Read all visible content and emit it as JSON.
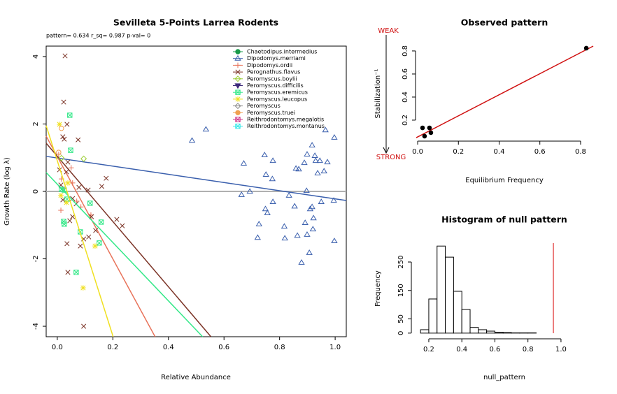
{
  "chart_data": [
    {
      "type": "scatter",
      "title": "Sevilleta 5-Points Larrea Rodents",
      "subtitle": "pattern= 0.634 r_sq= 0.987 p-val= 0",
      "x_label": "Relative Abundance",
      "y_label": "Growth Rate (log λ)",
      "xlim": [
        -0.04,
        1.04
      ],
      "ylim": [
        -4.31,
        4.31
      ],
      "xticks": [
        {
          "value": 0,
          "label": "0.0"
        },
        {
          "value": 0.2,
          "label": "0.2"
        },
        {
          "value": 0.4,
          "label": "0.4"
        },
        {
          "value": 0.6,
          "label": "0.6"
        },
        {
          "value": 0.8,
          "label": "0.8"
        },
        {
          "value": 1,
          "label": "1.0"
        }
      ],
      "yticks": [
        -4,
        -2,
        0,
        2,
        4
      ],
      "hline": 0,
      "hline_color": "#b0b0b0",
      "legend": "top-right",
      "series": [
        {
          "name": "Chaetodipus.intermedius",
          "color": "#1a9a4a",
          "marker": "circle",
          "x": [],
          "values": []
        },
        {
          "name": "Dipodomys.merriami",
          "color": "#3a5fad",
          "marker": "triangle",
          "x": [
            0.485,
            0.535,
            0.671,
            0.663,
            0.693,
            0.746,
            0.751,
            0.776,
            0.774,
            0.776,
            0.749,
            0.756,
            0.726,
            0.721,
            0.817,
            0.819,
            0.834,
            0.854,
            0.859,
            0.869,
            0.864,
            0.879,
            0.892,
            0.889,
            0.899,
            0.899,
            0.907,
            0.91,
            0.917,
            0.922,
            0.917,
            0.927,
            0.93,
            0.937,
            0.945,
            0.95,
            0.96,
            0.972,
            0.965,
            0.997,
            0.995,
            0.997,
            0.897,
            0.92
          ],
          "values": [
            1.51,
            1.84,
            0.83,
            -0.1,
            0,
            1.08,
            0.5,
            0.91,
            0.37,
            -0.31,
            -0.52,
            -0.64,
            -0.97,
            -1.37,
            -1.04,
            -1.39,
            -0.12,
            -0.44,
            0.68,
            0.66,
            -1.31,
            -2.11,
            -0.93,
            0.85,
            1.1,
            -1.28,
            -1.82,
            -0.52,
            -0.46,
            -0.79,
            1.37,
            1.06,
            0.91,
            0.54,
            0.91,
            -0.31,
            0.6,
            0.87,
            1.82,
            1.6,
            -0.27,
            -1.47,
            0.02,
            -1.12
          ],
          "fit_x": [
            -0.04,
            1.04
          ],
          "fit_y": [
            1.04,
            -0.27
          ]
        },
        {
          "name": "Dipodomys.ordii",
          "color": "#e8735a",
          "marker": "plus",
          "x": [
            0.013,
            0.005,
            0.05,
            0.055,
            0.025,
            0.07,
            0.085,
            0.121,
            0.015
          ],
          "values": [
            -0.56,
            1.1,
            0.7,
            0.25,
            0.08,
            -0.29,
            -0.46,
            -0.7,
            0.37
          ],
          "fit_x": [
            -0.04,
            0.352
          ],
          "fit_y": [
            1.64,
            -4.31
          ]
        },
        {
          "name": "Perognathus.flavus",
          "color": "#7b3326",
          "marker": "x",
          "x": [
            0.028,
            0.023,
            0.035,
            0.02,
            0.025,
            0.075,
            0.038,
            0.008,
            0.033,
            0.176,
            0.16,
            0.111,
            0.078,
            0.013,
            0.055,
            0.068,
            0.045,
            0.055,
            0.035,
            0.083,
            0.095,
            0.113,
            0.138,
            0.214,
            0.234,
            0.038,
            0.095,
            0.123,
            0.02
          ],
          "values": [
            4.02,
            2.65,
            1.99,
            1.62,
            1.55,
            1.53,
            0.87,
            0.64,
            0.58,
            0.39,
            0.15,
            0.04,
            0.12,
            0.19,
            -0.21,
            -0.37,
            -0.87,
            -0.75,
            -1.55,
            -1.62,
            -1.41,
            -1.35,
            -1.16,
            -0.83,
            -1.02,
            -2.4,
            -4,
            -0.75,
            -0.25
          ],
          "fit_x": [
            -0.04,
            0.553
          ],
          "fit_y": [
            1.43,
            -4.31
          ]
        },
        {
          "name": "Peromyscus.boylii",
          "color": "#9acd32",
          "marker": "diamond",
          "x": [
            0.095,
            0.015
          ],
          "values": [
            0.97,
            0.99
          ]
        },
        {
          "name": "Peromyscus.difficilis",
          "color": "#3d2a7a",
          "marker": "down",
          "x": [],
          "values": []
        },
        {
          "name": "Peromyscus.eremicus",
          "color": "#33e888",
          "marker": "boxx",
          "x": [
            0.045,
            0.048,
            0.035,
            0.023,
            0.025,
            0.118,
            0.083,
            0.151,
            0.068,
            0.158,
            0.015,
            0.025
          ],
          "values": [
            2.26,
            1.22,
            -0.23,
            -0.89,
            -0.97,
            -0.35,
            -1.2,
            -1.53,
            -2.4,
            -0.91,
            0.06,
            0.04
          ],
          "fit_x": [
            -0.04,
            0.523
          ],
          "fit_y": [
            0.56,
            -4.31
          ]
        },
        {
          "name": "Peromyscus.leucopus",
          "color": "#f0e020",
          "marker": "star",
          "x": [
            0.008,
            0.038,
            0.093,
            0.136,
            0.033,
            0.013
          ],
          "values": [
            1.99,
            0.25,
            -2.86,
            -1.62,
            -0.33,
            -0.12
          ],
          "fit_x": [
            -0.04,
            0.201
          ],
          "fit_y": [
            1.95,
            -4.31
          ]
        },
        {
          "name": "Peromyscus",
          "color": "#8a8a8a",
          "marker": "diamond",
          "x": [],
          "values": []
        },
        {
          "name": "Peromyscus.truei",
          "color": "#f0a050",
          "marker": "circle",
          "x": [
            0.015,
            0.005
          ],
          "values": [
            1.87,
            1.16
          ]
        },
        {
          "name": "Reithrodontomys.megalotis",
          "color": "#d0368a",
          "marker": "boxx",
          "x": [],
          "values": []
        },
        {
          "name": "Reithrodontomys.montanus",
          "color": "#33e8e8",
          "marker": "boxx",
          "x": [],
          "values": []
        }
      ]
    },
    {
      "type": "scatter",
      "title": "Observed pattern",
      "x_label": "Equilibrium Frequency",
      "y_label": "Stabilization⁻¹",
      "annotations": [
        "WEAK",
        "STRONG"
      ],
      "annotation_color": "#d01010",
      "xlim": [
        -0.007,
        0.862
      ],
      "ylim": [
        0.018,
        0.842
      ],
      "xticks": [
        {
          "value": 0,
          "label": "0.0"
        },
        0.2,
        0.4,
        0.6,
        0.8
      ],
      "yticks": [
        0.2,
        0.4,
        0.6,
        0.8
      ],
      "series": [
        {
          "color": "#000000",
          "marker": "dot",
          "x": [
            0.024,
            0.058,
            0.034,
            0.065,
            0.828
          ],
          "values": [
            0.133,
            0.133,
            0.061,
            0.091,
            0.824
          ],
          "fit_x": [
            -0.007,
            0.862
          ],
          "fit_y": [
            0.048,
            0.842
          ],
          "fit_color": "#d01010"
        }
      ]
    },
    {
      "type": "histogram",
      "title": "Histogram of null pattern",
      "x_label": "null_pattern",
      "y_label": "Frequency",
      "xlim": [
        0.124,
        1.013
      ],
      "ylim": [
        -20,
        336
      ],
      "xticks": [
        0.2,
        0.4,
        0.6,
        0.8,
        {
          "value": 1,
          "label": "1.0"
        }
      ],
      "yticks": [
        0,
        50,
        150,
        250
      ],
      "bins": [
        0.15,
        0.2,
        0.25,
        0.3,
        0.35,
        0.4,
        0.45,
        0.5,
        0.55,
        0.6,
        0.65,
        0.7,
        0.75,
        0.8,
        0.85
      ],
      "values": [
        12,
        120,
        306,
        267,
        147,
        83,
        20,
        12,
        7,
        3,
        2,
        1,
        1,
        1
      ],
      "vline": 0.954,
      "vline_color": "#e03030"
    }
  ]
}
